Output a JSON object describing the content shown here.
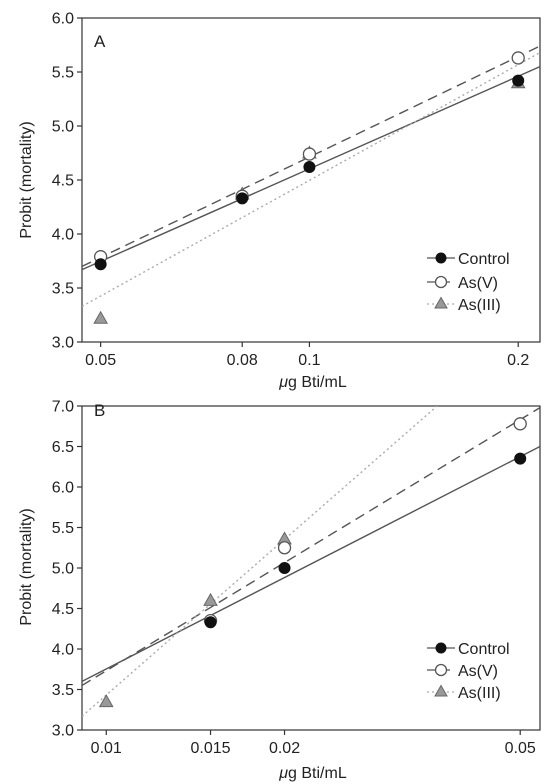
{
  "colors": {
    "axis": "#333333",
    "control": "#111111",
    "asv_fill": "#ffffff",
    "asv_stroke": "#555555",
    "asiii_fill": "#999999",
    "asiii_stroke": "#666666",
    "control_line": "#555555",
    "asv_line": "#555555",
    "asiii_line": "#aaaaaa"
  },
  "chart_data": [
    {
      "type": "scatter",
      "panel_label": "A",
      "xlabel_prefix": "μ",
      "xlabel_rest": "g Bti/mL",
      "ylabel": "Probit (mortality)",
      "x_scale": "log",
      "xlim": [
        0.047,
        0.215
      ],
      "ylim": [
        3.0,
        6.0
      ],
      "x_ticks": [
        0.05,
        0.08,
        0.1,
        0.2
      ],
      "x_tick_labels": [
        "0.05",
        "0.08",
        "0.1",
        "0.2"
      ],
      "y_ticks": [
        3.0,
        3.5,
        4.0,
        4.5,
        5.0,
        5.5,
        6.0
      ],
      "y_tick_labels": [
        "3.0",
        "3.5",
        "4.0",
        "4.5",
        "5.0",
        "5.5",
        "6.0"
      ],
      "legend_position": "bottom-right",
      "series": [
        {
          "name": "Control",
          "marker": "filled-circle",
          "line": "solid",
          "x": [
            0.05,
            0.08,
            0.1,
            0.2
          ],
          "y": [
            3.72,
            4.33,
            4.62,
            5.42
          ],
          "fit": [
            [
              0.047,
              3.67
            ],
            [
              0.215,
              5.55
            ]
          ]
        },
        {
          "name": "As(V)",
          "marker": "open-circle",
          "line": "dashed",
          "x": [
            0.05,
            0.08,
            0.1,
            0.2
          ],
          "y": [
            3.79,
            4.35,
            4.74,
            5.63
          ],
          "fit": [
            [
              0.047,
              3.7
            ],
            [
              0.215,
              5.74
            ]
          ]
        },
        {
          "name": "As(III)",
          "marker": "triangle",
          "line": "dotted",
          "x": [
            0.05,
            0.08,
            0.1,
            0.2
          ],
          "y": [
            3.22,
            4.37,
            4.75,
            5.4
          ],
          "fit": [
            [
              0.047,
              3.33
            ],
            [
              0.215,
              5.68
            ]
          ]
        }
      ]
    },
    {
      "type": "scatter",
      "panel_label": "B",
      "xlabel_prefix": "μ",
      "xlabel_rest": "g Bti/mL",
      "ylabel": "Probit (mortality)",
      "x_scale": "log",
      "xlim": [
        0.0091,
        0.054
      ],
      "ylim": [
        3.0,
        7.0
      ],
      "x_ticks": [
        0.01,
        0.015,
        0.02,
        0.05
      ],
      "x_tick_labels": [
        "0.01",
        "0.015",
        "0.02",
        "0.05"
      ],
      "y_ticks": [
        3.0,
        3.5,
        4.0,
        4.5,
        5.0,
        5.5,
        6.0,
        6.5,
        7.0
      ],
      "y_tick_labels": [
        "3.0",
        "3.5",
        "4.0",
        "4.5",
        "5.0",
        "5.5",
        "6.0",
        "6.5",
        "7.0"
      ],
      "legend_position": "bottom-right",
      "series": [
        {
          "name": "Control",
          "marker": "filled-circle",
          "line": "solid",
          "x": [
            0.015,
            0.02,
            0.05
          ],
          "y": [
            4.33,
            5.0,
            6.35
          ],
          "fit": [
            [
              0.0091,
              3.6
            ],
            [
              0.054,
              6.5
            ]
          ]
        },
        {
          "name": "As(V)",
          "marker": "open-circle",
          "line": "dashed",
          "x": [
            0.015,
            0.02,
            0.05
          ],
          "y": [
            4.35,
            5.25,
            6.78
          ],
          "fit": [
            [
              0.0091,
              3.55
            ],
            [
              0.054,
              6.98
            ]
          ]
        },
        {
          "name": "As(III)",
          "marker": "triangle",
          "line": "dotted",
          "x": [
            0.01,
            0.015,
            0.02
          ],
          "y": [
            3.35,
            4.6,
            5.36
          ],
          "fit": [
            [
              0.0091,
              3.17
            ],
            [
              0.0362,
              7.0
            ]
          ]
        }
      ]
    }
  ]
}
